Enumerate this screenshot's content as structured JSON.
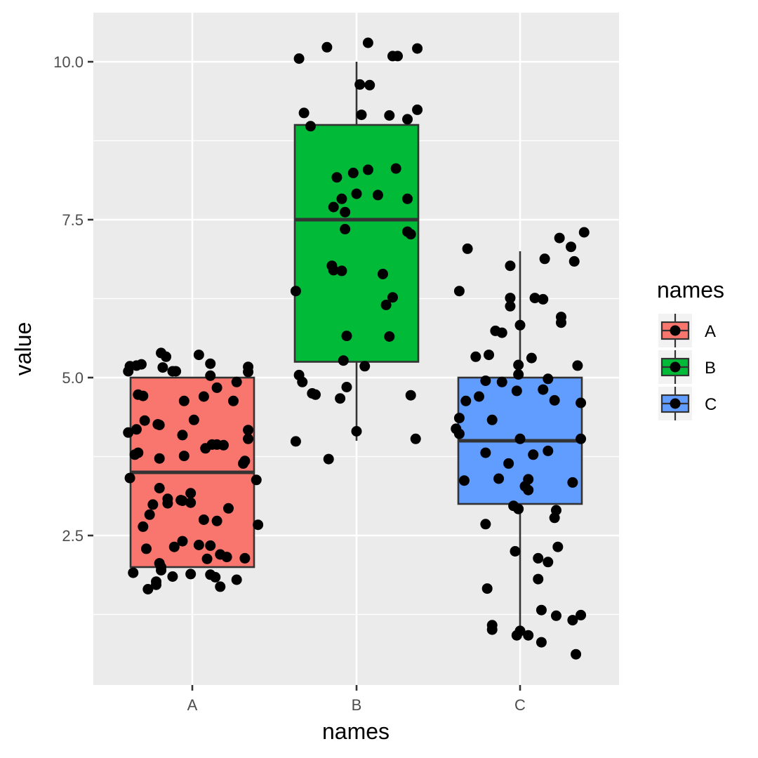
{
  "chart_data": {
    "type": "boxplot",
    "xlabel": "names",
    "ylabel": "value",
    "categories": [
      "A",
      "B",
      "C"
    ],
    "ylim": [
      0.4,
      10.7
    ],
    "yticks": [
      2.5,
      5.0,
      7.5,
      10.0
    ],
    "ytick_labels": [
      "2.5",
      "5.0",
      "7.5",
      "10.0"
    ],
    "grid": true,
    "legend": {
      "title": "names",
      "position": "right",
      "items": [
        {
          "label": "A",
          "color": "#F8766D"
        },
        {
          "label": "B",
          "color": "#00BA38"
        },
        {
          "label": "C",
          "color": "#619CFF"
        }
      ]
    },
    "boxes": [
      {
        "name": "A",
        "color": "#F8766D",
        "min": 2.0,
        "q1": 2.0,
        "median": 3.5,
        "q3": 5.0,
        "max": 5.0
      },
      {
        "name": "B",
        "color": "#00BA38",
        "min": 4.0,
        "q1": 5.25,
        "median": 7.5,
        "q3": 9.0,
        "max": 10.0
      },
      {
        "name": "C",
        "color": "#619CFF",
        "min": 1.0,
        "q1": 3.0,
        "median": 4.0,
        "q3": 5.0,
        "max": 7.0
      }
    ],
    "points": {
      "A": [
        [
          -0.39,
          5.1
        ],
        [
          -0.38,
          5.18
        ],
        [
          -0.34,
          5.19
        ],
        [
          -0.31,
          5.21
        ],
        [
          -0.19,
          5.39
        ],
        [
          -0.16,
          5.33
        ],
        [
          -0.18,
          5.16
        ],
        [
          -0.12,
          5.1
        ],
        [
          -0.1,
          5.1
        ],
        [
          0.04,
          5.36
        ],
        [
          0.11,
          5.22
        ],
        [
          0.11,
          5.03
        ],
        [
          0.34,
          5.17
        ],
        [
          0.34,
          5.09
        ],
        [
          0.27,
          4.93
        ],
        [
          0.15,
          4.84
        ],
        [
          -0.3,
          4.71
        ],
        [
          -0.33,
          4.73
        ],
        [
          -0.05,
          4.63
        ],
        [
          0.07,
          4.7
        ],
        [
          0.25,
          4.63
        ],
        [
          -0.29,
          4.32
        ],
        [
          -0.2,
          4.25
        ],
        [
          -0.21,
          4.26
        ],
        [
          -0.39,
          4.13
        ],
        [
          -0.34,
          4.18
        ],
        [
          -0.06,
          4.09
        ],
        [
          0.01,
          4.33
        ],
        [
          0.34,
          4.17
        ],
        [
          0.34,
          4.03
        ],
        [
          0.08,
          3.88
        ],
        [
          0.12,
          3.94
        ],
        [
          0.15,
          3.94
        ],
        [
          0.19,
          3.93
        ],
        [
          -0.35,
          3.78
        ],
        [
          -0.33,
          3.81
        ],
        [
          -0.2,
          3.72
        ],
        [
          -0.05,
          3.76
        ],
        [
          0.31,
          3.64
        ],
        [
          0.32,
          3.68
        ],
        [
          -0.38,
          3.41
        ],
        [
          0.39,
          3.38
        ],
        [
          -0.2,
          3.25
        ],
        [
          -0.15,
          3.08
        ],
        [
          -0.15,
          3.01
        ],
        [
          -0.07,
          3.06
        ],
        [
          -0.06,
          3.05
        ],
        [
          -0.01,
          3.17
        ],
        [
          -0.01,
          3.02
        ],
        [
          -0.24,
          2.99
        ],
        [
          0.22,
          2.93
        ],
        [
          -0.26,
          2.83
        ],
        [
          0.07,
          2.75
        ],
        [
          0.15,
          2.73
        ],
        [
          -0.3,
          2.64
        ],
        [
          0.4,
          2.67
        ],
        [
          -0.06,
          2.41
        ],
        [
          -0.11,
          2.32
        ],
        [
          -0.28,
          2.29
        ],
        [
          0.04,
          2.35
        ],
        [
          0.11,
          2.34
        ],
        [
          0.17,
          2.2
        ],
        [
          0.21,
          2.16
        ],
        [
          0.09,
          2.13
        ],
        [
          0.32,
          2.14
        ],
        [
          -0.2,
          2.06
        ],
        [
          -0.19,
          2.0
        ],
        [
          -0.36,
          1.91
        ],
        [
          -0.19,
          1.95
        ],
        [
          -0.22,
          1.77
        ],
        [
          -0.12,
          1.85
        ],
        [
          -0.01,
          1.89
        ],
        [
          0.11,
          1.88
        ],
        [
          0.14,
          1.84
        ],
        [
          0.27,
          1.8
        ],
        [
          -0.22,
          1.72
        ],
        [
          0.17,
          1.69
        ],
        [
          -0.27,
          1.65
        ]
      ],
      "B": [
        [
          -0.35,
          10.05
        ],
        [
          -0.18,
          10.23
        ],
        [
          0.07,
          10.3
        ],
        [
          0.22,
          10.09
        ],
        [
          0.25,
          10.09
        ],
        [
          0.37,
          10.21
        ],
        [
          0.02,
          9.64
        ],
        [
          0.08,
          9.63
        ],
        [
          -0.32,
          9.19
        ],
        [
          0.03,
          9.16
        ],
        [
          0.2,
          9.15
        ],
        [
          0.31,
          9.09
        ],
        [
          0.37,
          9.24
        ],
        [
          -0.28,
          8.98
        ],
        [
          -0.12,
          8.17
        ],
        [
          -0.02,
          8.24
        ],
        [
          0.07,
          8.29
        ],
        [
          0.24,
          8.31
        ],
        [
          0.0,
          7.91
        ],
        [
          0.13,
          7.89
        ],
        [
          0.31,
          7.83
        ],
        [
          -0.09,
          7.83
        ],
        [
          -0.14,
          7.7
        ],
        [
          -0.07,
          7.62
        ],
        [
          -0.07,
          7.35
        ],
        [
          0.31,
          7.31
        ],
        [
          0.33,
          7.27
        ],
        [
          -0.15,
          6.77
        ],
        [
          -0.14,
          6.7
        ],
        [
          -0.09,
          6.69
        ],
        [
          0.16,
          6.64
        ],
        [
          -0.37,
          6.37
        ],
        [
          0.22,
          6.27
        ],
        [
          0.18,
          6.15
        ],
        [
          -0.06,
          5.66
        ],
        [
          0.2,
          5.65
        ],
        [
          -0.08,
          5.27
        ],
        [
          0.05,
          5.18
        ],
        [
          -0.35,
          5.04
        ],
        [
          -0.33,
          4.93
        ],
        [
          -0.27,
          4.75
        ],
        [
          -0.25,
          4.73
        ],
        [
          -0.06,
          4.85
        ],
        [
          -0.1,
          4.67
        ],
        [
          0.33,
          4.72
        ],
        [
          0.0,
          4.15
        ],
        [
          -0.37,
          3.99
        ],
        [
          0.36,
          4.03
        ],
        [
          -0.17,
          3.71
        ]
      ],
      "C": [
        [
          -0.32,
          7.04
        ],
        [
          0.24,
          7.21
        ],
        [
          0.31,
          7.07
        ],
        [
          0.39,
          7.3
        ],
        [
          0.15,
          6.88
        ],
        [
          0.33,
          6.84
        ],
        [
          -0.06,
          6.77
        ],
        [
          -0.37,
          6.37
        ],
        [
          -0.06,
          6.26
        ],
        [
          -0.06,
          6.13
        ],
        [
          0.09,
          6.26
        ],
        [
          0.14,
          6.24
        ],
        [
          0.25,
          5.96
        ],
        [
          0.25,
          5.87
        ],
        [
          0.0,
          5.83
        ],
        [
          -0.15,
          5.74
        ],
        [
          -0.11,
          5.71
        ],
        [
          -0.27,
          5.33
        ],
        [
          -0.19,
          5.36
        ],
        [
          0.07,
          5.31
        ],
        [
          -0.01,
          5.2
        ],
        [
          -0.01,
          5.05
        ],
        [
          0.35,
          5.19
        ],
        [
          -0.21,
          4.95
        ],
        [
          -0.11,
          4.93
        ],
        [
          0.17,
          4.98
        ],
        [
          -0.02,
          4.79
        ],
        [
          0.14,
          4.81
        ],
        [
          -0.33,
          4.63
        ],
        [
          -0.25,
          4.7
        ],
        [
          0.21,
          4.64
        ],
        [
          0.37,
          4.6
        ],
        [
          -0.17,
          4.33
        ],
        [
          -0.37,
          4.36
        ],
        [
          -0.39,
          4.19
        ],
        [
          -0.37,
          4.11
        ],
        [
          0.0,
          4.03
        ],
        [
          0.37,
          4.03
        ],
        [
          0.17,
          3.84
        ],
        [
          -0.21,
          3.81
        ],
        [
          0.08,
          3.78
        ],
        [
          -0.07,
          3.64
        ],
        [
          -0.34,
          3.37
        ],
        [
          -0.13,
          3.4
        ],
        [
          0.05,
          3.39
        ],
        [
          0.03,
          3.28
        ],
        [
          0.05,
          3.22
        ],
        [
          0.32,
          3.34
        ],
        [
          -0.04,
          2.97
        ],
        [
          -0.01,
          2.92
        ],
        [
          0.22,
          2.9
        ],
        [
          0.21,
          2.78
        ],
        [
          -0.21,
          2.68
        ],
        [
          -0.03,
          2.25
        ],
        [
          0.23,
          2.32
        ],
        [
          0.11,
          2.14
        ],
        [
          0.17,
          2.08
        ],
        [
          0.11,
          1.81
        ],
        [
          -0.2,
          1.66
        ],
        [
          0.13,
          1.32
        ],
        [
          0.22,
          1.23
        ],
        [
          0.32,
          1.16
        ],
        [
          0.37,
          1.24
        ],
        [
          -0.17,
          1.08
        ],
        [
          -0.17,
          1.01
        ],
        [
          0.0,
          0.99
        ],
        [
          -0.02,
          0.92
        ],
        [
          0.05,
          0.92
        ],
        [
          0.13,
          0.81
        ],
        [
          0.34,
          0.62
        ]
      ]
    }
  }
}
